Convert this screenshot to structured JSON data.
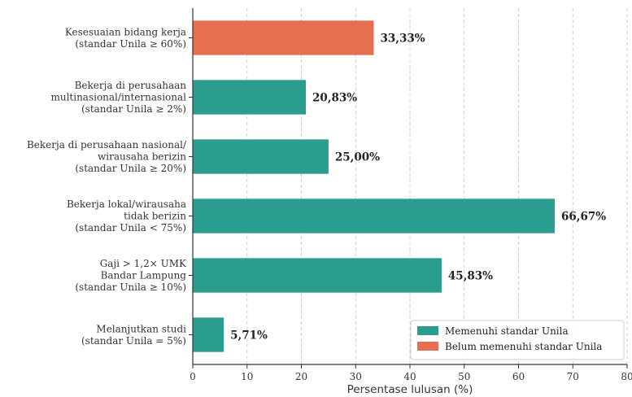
{
  "chart_data": {
    "type": "bar",
    "orientation": "horizontal",
    "categories": [
      [
        "Kesesuaian bidang kerja",
        "(standar Unila ≥ 60%)"
      ],
      [
        "Bekerja di perusahaan",
        "multinasional/internasional",
        "(standar Unila ≥ 2%)"
      ],
      [
        "Bekerja di perusahaan nasional/",
        "wirausaha berizin",
        "(standar Unila ≥ 20%)"
      ],
      [
        "Bekerja lokal/wirausaha",
        "tidak berizin",
        "(standar Unila < 75%)"
      ],
      [
        "Gaji > 1,2× UMK",
        "Bandar Lampung",
        "(standar Unila ≥ 10%)"
      ],
      [
        "Melanjutkan studi",
        "(standar Unila = 5%)"
      ]
    ],
    "values": [
      33.33,
      20.83,
      25.0,
      66.67,
      45.83,
      5.71
    ],
    "value_labels": [
      "33,33%",
      "20,83%",
      "25,00%",
      "66,67%",
      "45,83%",
      "5,71%"
    ],
    "status": [
      "belum",
      "memenuhi",
      "memenuhi",
      "memenuhi",
      "memenuhi",
      "memenuhi"
    ],
    "colors": {
      "memenuhi": "#2a9d8f",
      "belum": "#e76f51"
    },
    "legend": [
      {
        "key": "memenuhi",
        "label": "Memenuhi standar Unila"
      },
      {
        "key": "belum",
        "label": "Belum memenuhi standar Unila"
      }
    ],
    "legend_position": "bottom-right",
    "xlabel": "Persentase lulusan (%)",
    "xlim": [
      0,
      80
    ],
    "xticks": [
      0,
      10,
      20,
      30,
      40,
      50,
      60,
      70,
      80
    ],
    "grid": "x-dashed"
  }
}
